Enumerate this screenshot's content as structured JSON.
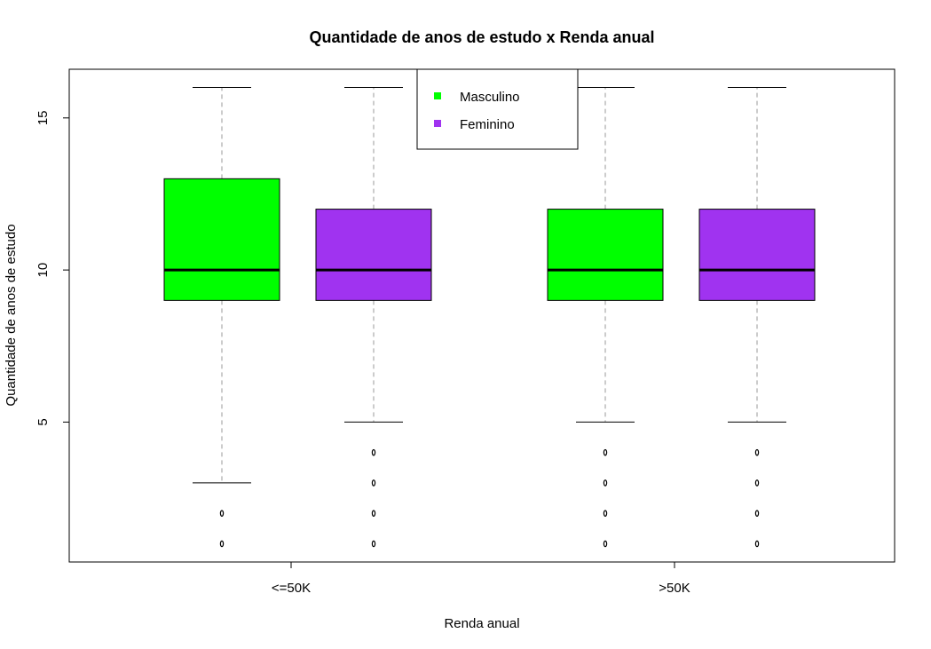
{
  "chart_data": {
    "type": "boxplot",
    "title": "Quantidade de anos de estudo x Renda anual",
    "xlabel": "Renda anual",
    "ylabel": "Quantidade de anos de estudo",
    "categories": [
      "<=50K",
      ">50K"
    ],
    "yticks": [
      5,
      10,
      15
    ],
    "ylim": [
      0.4,
      16.6
    ],
    "legend": {
      "position": "top",
      "entries": [
        {
          "label": "Masculino",
          "color": "#00ff00"
        },
        {
          "label": "Feminino",
          "color": "#a033f0"
        }
      ]
    },
    "series": [
      {
        "name": "Masculino",
        "color": "#00ff00",
        "boxes": [
          {
            "category": "<=50K",
            "whisker_low": 3,
            "q1": 9,
            "median": 10,
            "q3": 13,
            "whisker_high": 16,
            "outliers": [
              1,
              2
            ]
          },
          {
            "category": ">50K",
            "whisker_low": 5,
            "q1": 9,
            "median": 10,
            "q3": 12,
            "whisker_high": 16,
            "outliers": [
              1,
              2,
              3,
              4
            ]
          }
        ]
      },
      {
        "name": "Feminino",
        "color": "#a033f0",
        "boxes": [
          {
            "category": "<=50K",
            "whisker_low": 5,
            "q1": 9,
            "median": 10,
            "q3": 12,
            "whisker_high": 16,
            "outliers": [
              1,
              2,
              3,
              4
            ]
          },
          {
            "category": ">50K",
            "whisker_low": 5,
            "q1": 9,
            "median": 10,
            "q3": 12,
            "whisker_high": 16,
            "outliers": [
              1,
              2,
              3,
              4
            ]
          }
        ]
      }
    ]
  }
}
